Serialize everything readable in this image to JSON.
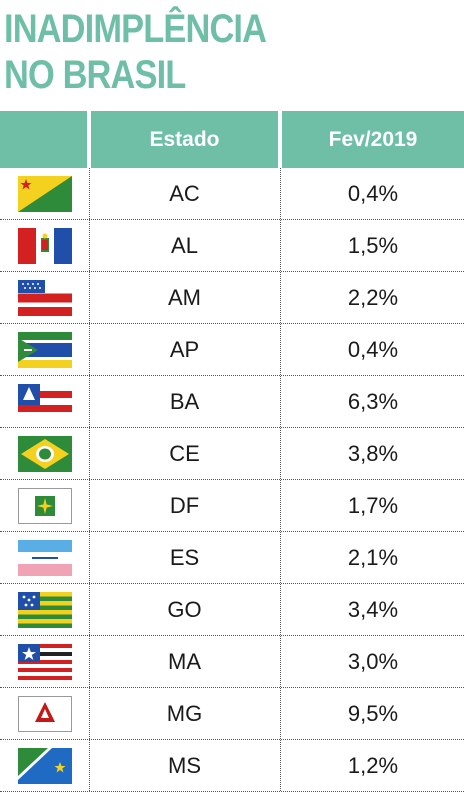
{
  "title_line1": "INADIMPLÊNCIA",
  "title_line2": "NO BRASIL",
  "header": {
    "flag": "",
    "state": "Estado",
    "value": "Fev/2019"
  },
  "colors": {
    "accent": "#6fbfa6"
  },
  "rows": [
    {
      "flag_icon": "acre-flag-icon",
      "state": "AC",
      "value": "0,4%"
    },
    {
      "flag_icon": "alagoas-flag-icon",
      "state": "AL",
      "value": "1,5%"
    },
    {
      "flag_icon": "amazonas-flag-icon",
      "state": "AM",
      "value": "2,2%"
    },
    {
      "flag_icon": "amapa-flag-icon",
      "state": "AP",
      "value": "0,4%"
    },
    {
      "flag_icon": "bahia-flag-icon",
      "state": "BA",
      "value": "6,3%"
    },
    {
      "flag_icon": "ceara-flag-icon",
      "state": "CE",
      "value": "3,8%"
    },
    {
      "flag_icon": "distrito-federal-flag-icon",
      "state": "DF",
      "value": "1,7%"
    },
    {
      "flag_icon": "espirito-santo-flag-icon",
      "state": "ES",
      "value": "2,1%"
    },
    {
      "flag_icon": "goias-flag-icon",
      "state": "GO",
      "value": "3,4%"
    },
    {
      "flag_icon": "maranhao-flag-icon",
      "state": "MA",
      "value": "3,0%"
    },
    {
      "flag_icon": "minas-gerais-flag-icon",
      "state": "MG",
      "value": "9,5%"
    },
    {
      "flag_icon": "mato-grosso-do-sul-flag-icon",
      "state": "MS",
      "value": "1,2%"
    }
  ]
}
